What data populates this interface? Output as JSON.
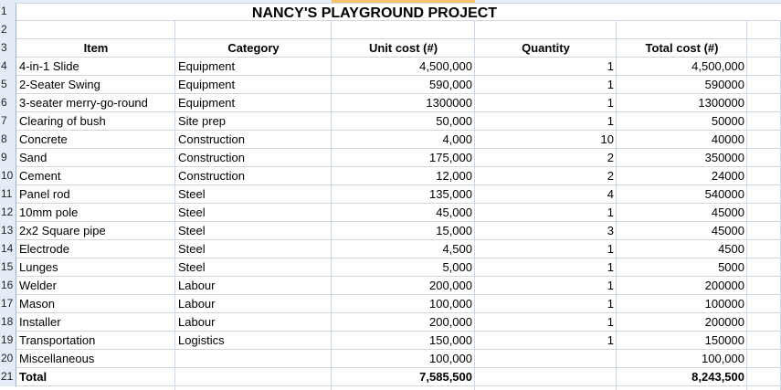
{
  "sheet": {
    "title": "NANCY'S PLAYGROUND PROJECT",
    "row_numbers": [
      "1",
      "2",
      "3",
      "4",
      "5",
      "6",
      "7",
      "8",
      "9",
      "10",
      "11",
      "12",
      "13",
      "14",
      "15",
      "16",
      "17",
      "18",
      "19",
      "20",
      "21"
    ],
    "headers": {
      "item": "Item",
      "category": "Category",
      "unit_cost": "Unit cost (#)",
      "quantity": "Quantity",
      "total_cost": "Total cost (#)"
    },
    "rows": [
      {
        "item": "4-in-1 Slide",
        "category": "Equipment",
        "unit_cost": "4,500,000",
        "quantity": "1",
        "total_cost": "4,500,000"
      },
      {
        "item": "2-Seater Swing",
        "category": "Equipment",
        "unit_cost": "590,000",
        "quantity": "1",
        "total_cost": "590000"
      },
      {
        "item": "3-seater merry-go-round",
        "category": "Equipment",
        "unit_cost": "1300000",
        "quantity": "1",
        "total_cost": "1300000"
      },
      {
        "item": "Clearing of bush",
        "category": "Site prep",
        "unit_cost": "50,000",
        "quantity": "1",
        "total_cost": "50000"
      },
      {
        "item": "Concrete",
        "category": "Construction",
        "unit_cost": "4,000",
        "quantity": "10",
        "total_cost": "40000"
      },
      {
        "item": "Sand",
        "category": "Construction",
        "unit_cost": "175,000",
        "quantity": "2",
        "total_cost": "350000"
      },
      {
        "item": "Cement",
        "category": "Construction",
        "unit_cost": "12,000",
        "quantity": "2",
        "total_cost": "24000"
      },
      {
        "item": "Panel rod",
        "category": "Steel",
        "unit_cost": "135,000",
        "quantity": "4",
        "total_cost": "540000"
      },
      {
        "item": "10mm pole",
        "category": "Steel",
        "unit_cost": "45,000",
        "quantity": "1",
        "total_cost": "45000"
      },
      {
        "item": "2x2 Square pipe",
        "category": "Steel",
        "unit_cost": "15,000",
        "quantity": "3",
        "total_cost": "45000"
      },
      {
        "item": "Electrode",
        "category": "Steel",
        "unit_cost": "4,500",
        "quantity": "1",
        "total_cost": "4500"
      },
      {
        "item": "Lunges",
        "category": "Steel",
        "unit_cost": "5,000",
        "quantity": "1",
        "total_cost": "5000"
      },
      {
        "item": "Welder",
        "category": "Labour",
        "unit_cost": "200,000",
        "quantity": "1",
        "total_cost": "200000"
      },
      {
        "item": "Mason",
        "category": "Labour",
        "unit_cost": "100,000",
        "quantity": "1",
        "total_cost": "100000"
      },
      {
        "item": "Installer",
        "category": "Labour",
        "unit_cost": "200,000",
        "quantity": "1",
        "total_cost": "200000"
      },
      {
        "item": "Transportation",
        "category": "Logistics",
        "unit_cost": "150,000",
        "quantity": "1",
        "total_cost": "150000"
      },
      {
        "item": "Miscellaneous",
        "category": "",
        "unit_cost": "100,000",
        "quantity": "",
        "total_cost": "100,000"
      }
    ],
    "total": {
      "item": "Total",
      "category": "",
      "unit_cost": "7,585,500",
      "quantity": "",
      "total_cost": "8,243,500"
    }
  }
}
